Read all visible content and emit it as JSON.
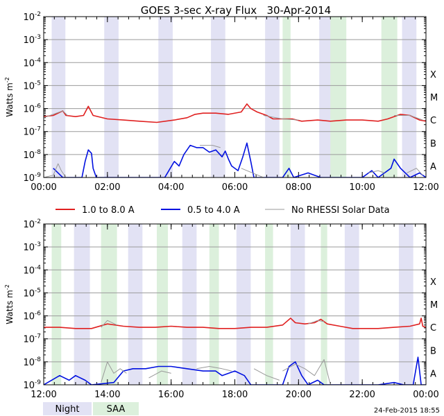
{
  "title": "GOES 3-sec X-ray Flux   30-Apr-2014",
  "legend": {
    "items": [
      {
        "label": "1.0 to 8.0 A",
        "color": "#e02020"
      },
      {
        "label": "0.5 to 4.0 A",
        "color": "#0010e0"
      },
      {
        "label": "No RHESSI Solar Data",
        "color": "#999999"
      }
    ]
  },
  "key": {
    "night": {
      "label": "Night",
      "color": "#e2e2f4"
    },
    "saa": {
      "label": "SAA",
      "color": "#dcf0dc"
    }
  },
  "timestamp": "24-Feb-2015 18:55",
  "chart_data": [
    {
      "type": "line",
      "name": "panel-1",
      "ylabel": "Watts m",
      "ylabel_sup": "-2",
      "y_scale": "log",
      "ylim": [
        1e-09,
        0.01
      ],
      "y_tick_labels": [
        {
          "base": "10",
          "exp": "-9"
        },
        {
          "base": "10",
          "exp": "-8"
        },
        {
          "base": "10",
          "exp": "-7"
        },
        {
          "base": "10",
          "exp": "-6"
        },
        {
          "base": "10",
          "exp": "-5"
        },
        {
          "base": "10",
          "exp": "-4"
        },
        {
          "base": "10",
          "exp": "-3"
        },
        {
          "base": "10",
          "exp": "-2"
        }
      ],
      "class_labels": [
        "A",
        "B",
        "C",
        "M",
        "X"
      ],
      "xlim": [
        "00:00",
        "12:00"
      ],
      "x_tick_labels": [
        "00:00",
        "02:00",
        "04:00",
        "06:00",
        "08:00",
        "10:00",
        "12:00"
      ],
      "night_intervals": [
        [
          0.25,
          0.68
        ],
        [
          1.9,
          2.35
        ],
        [
          3.6,
          4.05
        ],
        [
          5.25,
          5.7
        ],
        [
          6.95,
          7.4
        ],
        [
          8.65,
          9.1
        ],
        [
          11.25,
          11.7
        ]
      ],
      "saa_intervals": [
        [
          7.5,
          7.75
        ],
        [
          9.0,
          9.5
        ],
        [
          10.6,
          11.1
        ]
      ],
      "series": [
        {
          "name": "1.0 to 8.0 A",
          "color": "#e02020",
          "points": [
            [
              0.0,
              -6.35
            ],
            [
              0.3,
              -6.3
            ],
            [
              0.6,
              -6.1
            ],
            [
              0.7,
              -6.3
            ],
            [
              1.0,
              -6.35
            ],
            [
              1.25,
              -6.3
            ],
            [
              1.4,
              -5.9
            ],
            [
              1.55,
              -6.3
            ],
            [
              2.0,
              -6.45
            ],
            [
              2.5,
              -6.5
            ],
            [
              3.0,
              -6.55
            ],
            [
              3.55,
              -6.6
            ],
            [
              4.1,
              -6.5
            ],
            [
              4.5,
              -6.4
            ],
            [
              4.75,
              -6.25
            ],
            [
              5.0,
              -6.2
            ],
            [
              5.4,
              -6.2
            ],
            [
              5.8,
              -6.25
            ],
            [
              6.2,
              -6.15
            ],
            [
              6.38,
              -5.8
            ],
            [
              6.5,
              -6.0
            ],
            [
              6.7,
              -6.15
            ],
            [
              7.0,
              -6.3
            ],
            [
              7.2,
              -6.45
            ],
            [
              7.8,
              -6.45
            ],
            [
              8.1,
              -6.55
            ],
            [
              8.6,
              -6.5
            ],
            [
              9.0,
              -6.55
            ],
            [
              9.5,
              -6.5
            ],
            [
              10.0,
              -6.5
            ],
            [
              10.5,
              -6.55
            ],
            [
              10.8,
              -6.45
            ],
            [
              11.2,
              -6.25
            ],
            [
              11.5,
              -6.3
            ],
            [
              11.8,
              -6.5
            ],
            [
              12.0,
              -6.55
            ]
          ]
        },
        {
          "name": "0.5 to 4.0 A",
          "color": "#0010e0",
          "points": [
            [
              0.3,
              -8.6
            ],
            [
              0.45,
              -8.8
            ],
            [
              0.6,
              -9.0
            ],
            [
              1.2,
              -9.0
            ],
            [
              1.3,
              -8.3
            ],
            [
              1.4,
              -7.8
            ],
            [
              1.5,
              -7.95
            ],
            [
              1.55,
              -8.6
            ],
            [
              1.65,
              -9.0
            ],
            [
              2.0,
              -9.0
            ],
            [
              3.5,
              -9.0
            ],
            [
              3.8,
              -9.0
            ],
            [
              4.1,
              -8.3
            ],
            [
              4.25,
              -8.5
            ],
            [
              4.4,
              -8.0
            ],
            [
              4.6,
              -7.6
            ],
            [
              4.8,
              -7.7
            ],
            [
              5.0,
              -7.7
            ],
            [
              5.2,
              -7.9
            ],
            [
              5.4,
              -7.8
            ],
            [
              5.6,
              -8.1
            ],
            [
              5.7,
              -7.85
            ],
            [
              5.8,
              -8.2
            ],
            [
              5.9,
              -8.5
            ],
            [
              6.1,
              -8.7
            ],
            [
              6.25,
              -8.1
            ],
            [
              6.38,
              -7.5
            ],
            [
              6.5,
              -8.3
            ],
            [
              6.6,
              -9.0
            ],
            [
              7.0,
              -9.0
            ],
            [
              7.5,
              -9.0
            ],
            [
              7.7,
              -8.6
            ],
            [
              7.85,
              -9.0
            ],
            [
              8.3,
              -8.8
            ],
            [
              8.5,
              -8.9
            ],
            [
              8.7,
              -9.0
            ],
            [
              9.0,
              -9.0
            ],
            [
              10.0,
              -9.0
            ],
            [
              10.3,
              -8.7
            ],
            [
              10.5,
              -9.0
            ],
            [
              10.9,
              -8.6
            ],
            [
              11.0,
              -8.2
            ],
            [
              11.2,
              -8.6
            ],
            [
              11.5,
              -9.0
            ],
            [
              11.8,
              -8.8
            ],
            [
              12.0,
              -9.0
            ]
          ]
        },
        {
          "name": "No RHESSI Solar Data",
          "color": "#999999",
          "segments": [
            [
              [
                0.0,
                -9.0
              ],
              [
                0.3,
                -8.9
              ],
              [
                0.45,
                -8.4
              ],
              [
                0.55,
                -8.7
              ],
              [
                0.7,
                -9.0
              ]
            ],
            [
              [
                6.2,
                -8.6
              ],
              [
                6.9,
                -9.0
              ],
              [
                7.3,
                -9.0
              ]
            ],
            [
              [
                4.9,
                -7.6
              ],
              [
                5.3,
                -7.6
              ],
              [
                5.55,
                -7.7
              ]
            ],
            [
              [
                10.2,
                -8.8
              ],
              [
                10.5,
                -8.7
              ],
              [
                10.7,
                -8.8
              ]
            ],
            [
              [
                11.4,
                -8.8
              ],
              [
                11.7,
                -8.6
              ],
              [
                11.9,
                -8.9
              ]
            ],
            [
              [
                0.0,
                -6.4
              ],
              [
                0.6,
                -6.1
              ],
              [
                0.75,
                -6.3
              ]
            ],
            [
              [
                6.9,
                -6.3
              ],
              [
                7.5,
                -6.45
              ],
              [
                8.0,
                -6.5
              ]
            ],
            [
              [
                11.0,
                -6.3
              ],
              [
                11.5,
                -6.3
              ],
              [
                11.9,
                -6.5
              ]
            ]
          ]
        }
      ]
    },
    {
      "type": "line",
      "name": "panel-2",
      "ylabel": "Watts m",
      "ylabel_sup": "-2",
      "y_scale": "log",
      "ylim": [
        1e-09,
        0.01
      ],
      "y_tick_labels": [
        {
          "base": "10",
          "exp": "-9"
        },
        {
          "base": "10",
          "exp": "-8"
        },
        {
          "base": "10",
          "exp": "-7"
        },
        {
          "base": "10",
          "exp": "-6"
        },
        {
          "base": "10",
          "exp": "-5"
        },
        {
          "base": "10",
          "exp": "-4"
        },
        {
          "base": "10",
          "exp": "-3"
        },
        {
          "base": "10",
          "exp": "-2"
        }
      ],
      "class_labels": [
        "A",
        "B",
        "C",
        "M",
        "X"
      ],
      "xlim": [
        "12:00",
        "00:00"
      ],
      "x_tick_labels": [
        "12:00",
        "14:00",
        "16:00",
        "18:00",
        "20:00",
        "22:00",
        "00:00"
      ],
      "night_intervals": [
        [
          12.95,
          13.45
        ],
        [
          14.65,
          15.1
        ],
        [
          16.35,
          16.8
        ],
        [
          18.05,
          18.5
        ],
        [
          19.75,
          20.2
        ],
        [
          21.45,
          21.9
        ],
        [
          23.15,
          23.6
        ]
      ],
      "saa_intervals": [
        [
          12.25,
          12.55
        ],
        [
          13.8,
          14.3
        ],
        [
          15.55,
          15.9
        ],
        [
          17.2,
          17.5
        ],
        [
          18.95,
          19.2
        ],
        [
          20.7,
          20.9
        ]
      ],
      "series": [
        {
          "name": "1.0 to 8.0 A",
          "color": "#e02020",
          "points": [
            [
              12.0,
              -6.5
            ],
            [
              12.5,
              -6.5
            ],
            [
              13.0,
              -6.55
            ],
            [
              13.5,
              -6.55
            ],
            [
              14.0,
              -6.35
            ],
            [
              14.5,
              -6.45
            ],
            [
              15.0,
              -6.5
            ],
            [
              15.5,
              -6.5
            ],
            [
              16.0,
              -6.45
            ],
            [
              16.5,
              -6.5
            ],
            [
              17.0,
              -6.5
            ],
            [
              17.5,
              -6.55
            ],
            [
              18.0,
              -6.55
            ],
            [
              18.5,
              -6.5
            ],
            [
              19.0,
              -6.5
            ],
            [
              19.5,
              -6.4
            ],
            [
              19.75,
              -6.1
            ],
            [
              19.9,
              -6.3
            ],
            [
              20.2,
              -6.35
            ],
            [
              20.5,
              -6.3
            ],
            [
              20.7,
              -6.15
            ],
            [
              20.9,
              -6.35
            ],
            [
              21.3,
              -6.45
            ],
            [
              21.7,
              -6.55
            ],
            [
              22.0,
              -6.55
            ],
            [
              22.5,
              -6.55
            ],
            [
              23.0,
              -6.5
            ],
            [
              23.5,
              -6.45
            ],
            [
              23.8,
              -6.35
            ],
            [
              23.85,
              -6.1
            ],
            [
              23.9,
              -6.45
            ],
            [
              24.0,
              -6.5
            ]
          ]
        },
        {
          "name": "0.5 to 4.0 A",
          "color": "#0010e0",
          "points": [
            [
              12.0,
              -9.0
            ],
            [
              12.5,
              -8.6
            ],
            [
              12.8,
              -8.8
            ],
            [
              13.0,
              -8.6
            ],
            [
              13.3,
              -8.8
            ],
            [
              13.5,
              -9.0
            ],
            [
              14.2,
              -8.9
            ],
            [
              14.5,
              -8.4
            ],
            [
              14.8,
              -8.3
            ],
            [
              15.2,
              -8.3
            ],
            [
              15.6,
              -8.2
            ],
            [
              16.0,
              -8.2
            ],
            [
              16.5,
              -8.3
            ],
            [
              17.0,
              -8.4
            ],
            [
              17.4,
              -8.4
            ],
            [
              17.6,
              -8.6
            ],
            [
              18.0,
              -8.4
            ],
            [
              18.3,
              -8.6
            ],
            [
              18.5,
              -9.0
            ],
            [
              19.0,
              -9.0
            ],
            [
              19.5,
              -9.0
            ],
            [
              19.7,
              -8.2
            ],
            [
              19.9,
              -8.0
            ],
            [
              20.1,
              -8.6
            ],
            [
              20.3,
              -9.0
            ],
            [
              20.6,
              -8.8
            ],
            [
              20.8,
              -9.0
            ],
            [
              21.0,
              -9.0
            ],
            [
              22.0,
              -9.0
            ],
            [
              22.5,
              -9.0
            ],
            [
              23.0,
              -8.9
            ],
            [
              23.3,
              -9.0
            ],
            [
              23.6,
              -9.0
            ],
            [
              23.75,
              -7.8
            ],
            [
              23.85,
              -9.0
            ],
            [
              24.0,
              -9.0
            ]
          ]
        },
        {
          "name": "No RHESSI Solar Data",
          "color": "#999999",
          "segments": [
            [
              [
                13.8,
                -8.9
              ],
              [
                14.0,
                -8.0
              ],
              [
                14.2,
                -8.5
              ],
              [
                14.4,
                -8.3
              ],
              [
                14.6,
                -8.5
              ]
            ],
            [
              [
                15.3,
                -8.7
              ],
              [
                15.7,
                -8.4
              ],
              [
                16.0,
                -8.5
              ]
            ],
            [
              [
                16.8,
                -8.3
              ],
              [
                17.2,
                -8.2
              ],
              [
                17.6,
                -8.3
              ],
              [
                17.9,
                -8.4
              ]
            ],
            [
              [
                18.6,
                -8.3
              ],
              [
                19.0,
                -8.6
              ],
              [
                19.4,
                -8.8
              ]
            ],
            [
              [
                19.5,
                -8.4
              ],
              [
                19.9,
                -8.1
              ],
              [
                20.2,
                -8.3
              ],
              [
                20.5,
                -8.6
              ],
              [
                20.8,
                -7.9
              ],
              [
                21.0,
                -9.0
              ]
            ],
            [
              [
                13.8,
                -6.5
              ],
              [
                14.0,
                -6.2
              ],
              [
                14.3,
                -6.4
              ]
            ],
            [
              [
                20.3,
                -6.35
              ],
              [
                20.6,
                -6.2
              ],
              [
                20.8,
                -6.25
              ]
            ]
          ]
        }
      ]
    }
  ]
}
